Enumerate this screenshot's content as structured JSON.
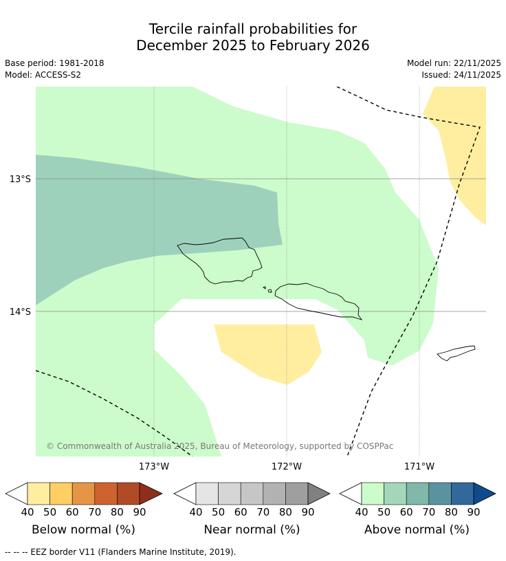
{
  "title_line1": "Tercile rainfall probabilities for",
  "title_line2": "December 2025 to February 2026",
  "base_period": "Base period: 1981-2018",
  "model": "Model: ACCESS-S2",
  "model_run": "Model run: 22/11/2025",
  "issued": "Issued: 24/11/2025",
  "map": {
    "lat_labels": [
      "13°S",
      "14°S"
    ],
    "lon_labels": [
      "173°W",
      "172°W",
      "171°W"
    ],
    "copyright": "© Commonwealth of Australia 2025, Bureau of Meteorology, supported by COSPPac"
  },
  "legends": [
    {
      "label": "Below normal (%)",
      "ticks": [
        "40",
        "50",
        "60",
        "70",
        "80",
        "90"
      ],
      "colors": [
        "#ffeea0",
        "#ffce64",
        "#e59545",
        "#cf632f",
        "#b14b26"
      ],
      "over": "#8f2e1c"
    },
    {
      "label": "Near normal (%)",
      "ticks": [
        "40",
        "50",
        "60",
        "70",
        "80",
        "90"
      ],
      "colors": [
        "#e5e5e5",
        "#d6d6d6",
        "#c6c6c6",
        "#b2b2b2",
        "#9f9f9f"
      ],
      "over": "#808080"
    },
    {
      "label": "Above normal (%)",
      "ticks": [
        "40",
        "50",
        "60",
        "70",
        "80",
        "90"
      ],
      "colors": [
        "#ccfccb",
        "#a4d7b9",
        "#80b8aa",
        "#5b92a0",
        "#31699d"
      ],
      "over": "#0f4a8c"
    }
  ],
  "eez_note": "--  --  -- EEZ border V11 (Flanders Marine Institute, 2019).",
  "colors": {
    "above_40": "#ccfccb",
    "above_50": "#9ed1bc",
    "below_40": "#ffeea0",
    "grid": "#888888"
  }
}
